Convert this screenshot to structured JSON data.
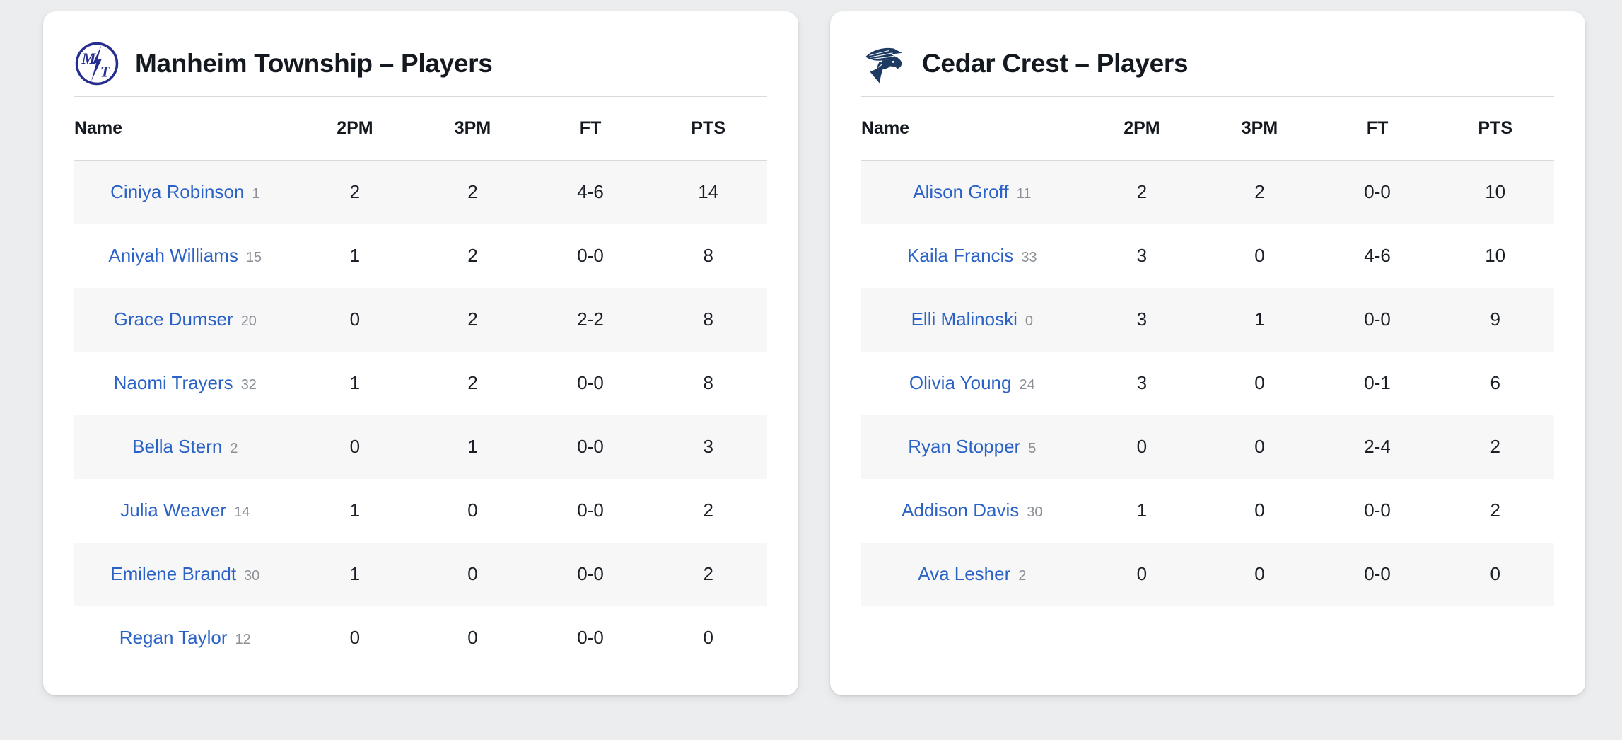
{
  "columns": [
    "Name",
    "2PM",
    "3PM",
    "FT",
    "PTS"
  ],
  "teams": [
    {
      "title": "Manheim Township – Players",
      "logo_icon": "mt-lightning-circle-logo",
      "players": [
        {
          "name": "Ciniya Robinson",
          "number": "1",
          "two_pm": "2",
          "three_pm": "2",
          "ft": "4-6",
          "pts": "14"
        },
        {
          "name": "Aniyah Williams",
          "number": "15",
          "two_pm": "1",
          "three_pm": "2",
          "ft": "0-0",
          "pts": "8"
        },
        {
          "name": "Grace Dumser",
          "number": "20",
          "two_pm": "0",
          "three_pm": "2",
          "ft": "2-2",
          "pts": "8"
        },
        {
          "name": "Naomi Trayers",
          "number": "32",
          "two_pm": "1",
          "three_pm": "2",
          "ft": "0-0",
          "pts": "8"
        },
        {
          "name": "Bella Stern",
          "number": "2",
          "two_pm": "0",
          "three_pm": "1",
          "ft": "0-0",
          "pts": "3"
        },
        {
          "name": "Julia Weaver",
          "number": "14",
          "two_pm": "1",
          "three_pm": "0",
          "ft": "0-0",
          "pts": "2"
        },
        {
          "name": "Emilene Brandt",
          "number": "30",
          "two_pm": "1",
          "three_pm": "0",
          "ft": "0-0",
          "pts": "2"
        },
        {
          "name": "Regan Taylor",
          "number": "12",
          "two_pm": "0",
          "three_pm": "0",
          "ft": "0-0",
          "pts": "0"
        }
      ]
    },
    {
      "title": "Cedar Crest – Players",
      "logo_icon": "falcon-logo",
      "players": [
        {
          "name": "Alison Groff",
          "number": "11",
          "two_pm": "2",
          "three_pm": "2",
          "ft": "0-0",
          "pts": "10"
        },
        {
          "name": "Kaila Francis",
          "number": "33",
          "two_pm": "3",
          "three_pm": "0",
          "ft": "4-6",
          "pts": "10"
        },
        {
          "name": "Elli Malinoski",
          "number": "0",
          "two_pm": "3",
          "three_pm": "1",
          "ft": "0-0",
          "pts": "9"
        },
        {
          "name": "Olivia Young",
          "number": "24",
          "two_pm": "3",
          "three_pm": "0",
          "ft": "0-1",
          "pts": "6"
        },
        {
          "name": "Ryan Stopper",
          "number": "5",
          "two_pm": "0",
          "three_pm": "0",
          "ft": "2-4",
          "pts": "2"
        },
        {
          "name": "Addison Davis",
          "number": "30",
          "two_pm": "1",
          "three_pm": "0",
          "ft": "0-0",
          "pts": "2"
        },
        {
          "name": "Ava Lesher",
          "number": "2",
          "two_pm": "0",
          "three_pm": "0",
          "ft": "0-0",
          "pts": "0"
        }
      ]
    }
  ],
  "colors": {
    "page_bg": "#ebedef",
    "card_bg": "#ffffff",
    "row_stripe": "#f7f7f8",
    "divider": "#d8dadd",
    "title_text": "#14181f",
    "body_text": "#1b1f26",
    "link_blue": "#2a62c6",
    "jersey_gray": "#8b9096",
    "mt_navy": "#262e8f",
    "falcon_navy": "#1d3a63"
  }
}
